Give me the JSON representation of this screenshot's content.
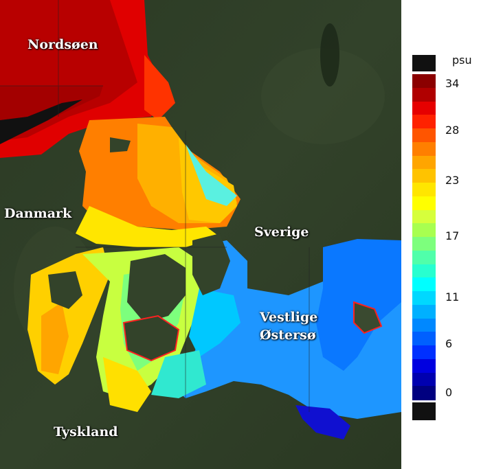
{
  "map": {
    "labels": {
      "nordsoen": "Nordsøen",
      "danmark": "Danmark",
      "sverige": "Sverige",
      "vestlige_line1": "Vestlige",
      "vestlige_line2": "Østersø",
      "tyskland": "Tyskland"
    }
  },
  "legend": {
    "unit": "psu",
    "tick_labels": [
      "34",
      "28",
      "23",
      "17",
      "11",
      "6",
      "0"
    ],
    "colors": [
      "#8b0000",
      "#b00000",
      "#e60000",
      "#ff2200",
      "#ff5500",
      "#ff7f00",
      "#ffa500",
      "#ffc300",
      "#ffe600",
      "#ffff00",
      "#d6ff3c",
      "#a8ff50",
      "#7dff7d",
      "#50ffaa",
      "#28ffd0",
      "#00ffff",
      "#00d8ff",
      "#00b0ff",
      "#0088ff",
      "#0060ff",
      "#0030ff",
      "#0000e0",
      "#0000b0",
      "#000080"
    ],
    "land_color": "#111111"
  }
}
